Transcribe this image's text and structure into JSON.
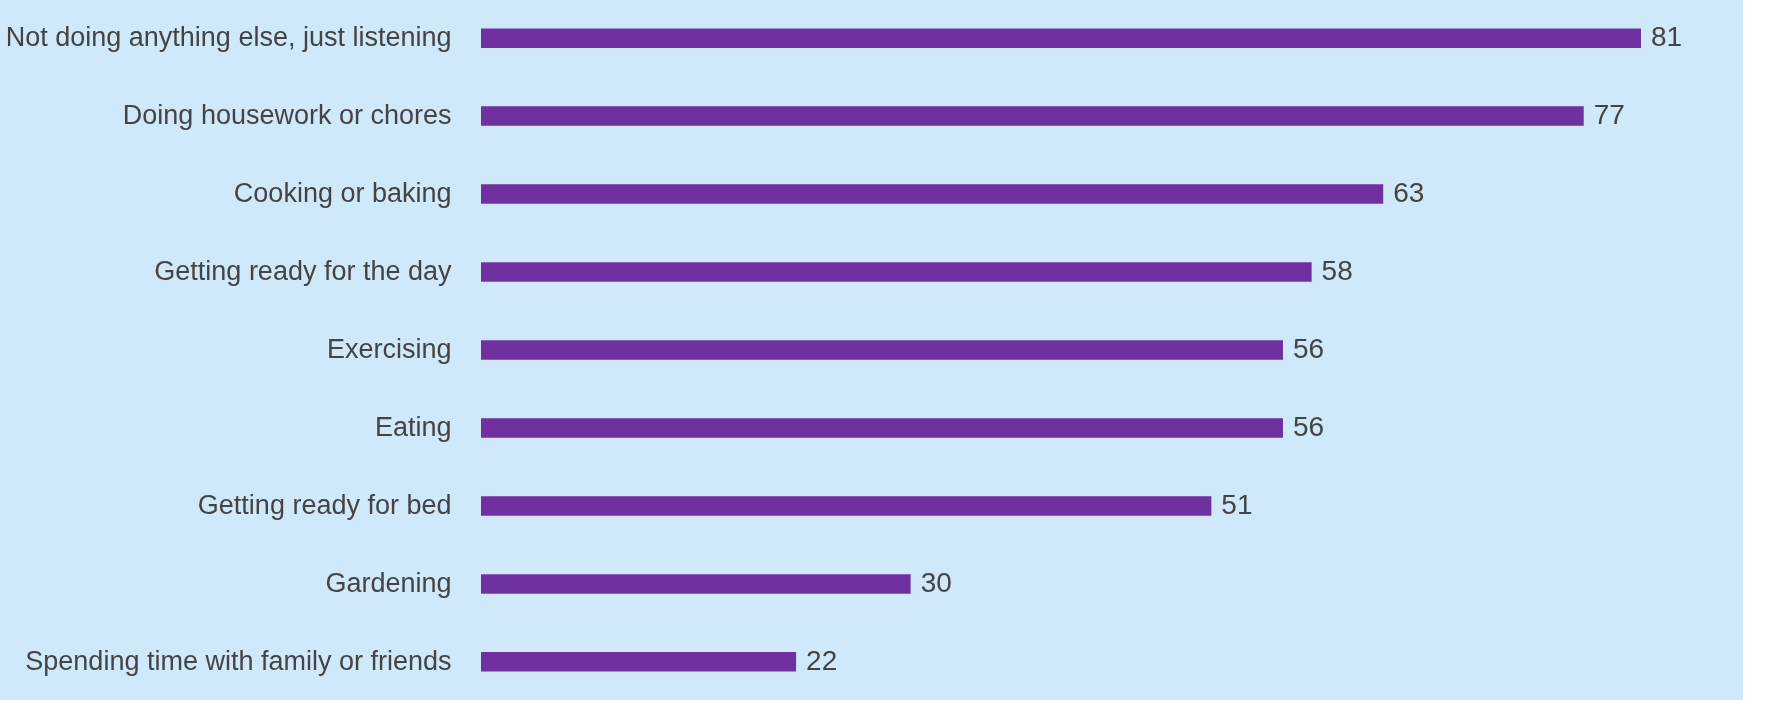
{
  "chart_data": {
    "type": "bar",
    "orientation": "horizontal",
    "categories": [
      "Not doing anything else, just listening",
      "Doing housework or chores",
      "Cooking or baking",
      "Getting ready for the day",
      "Exercising",
      "Eating",
      "Getting ready for bed",
      "Gardening",
      "Spending time with family or friends"
    ],
    "values": [
      81,
      77,
      63,
      58,
      56,
      56,
      51,
      30,
      22
    ],
    "color": "#7030a0",
    "data_labels": true
  }
}
